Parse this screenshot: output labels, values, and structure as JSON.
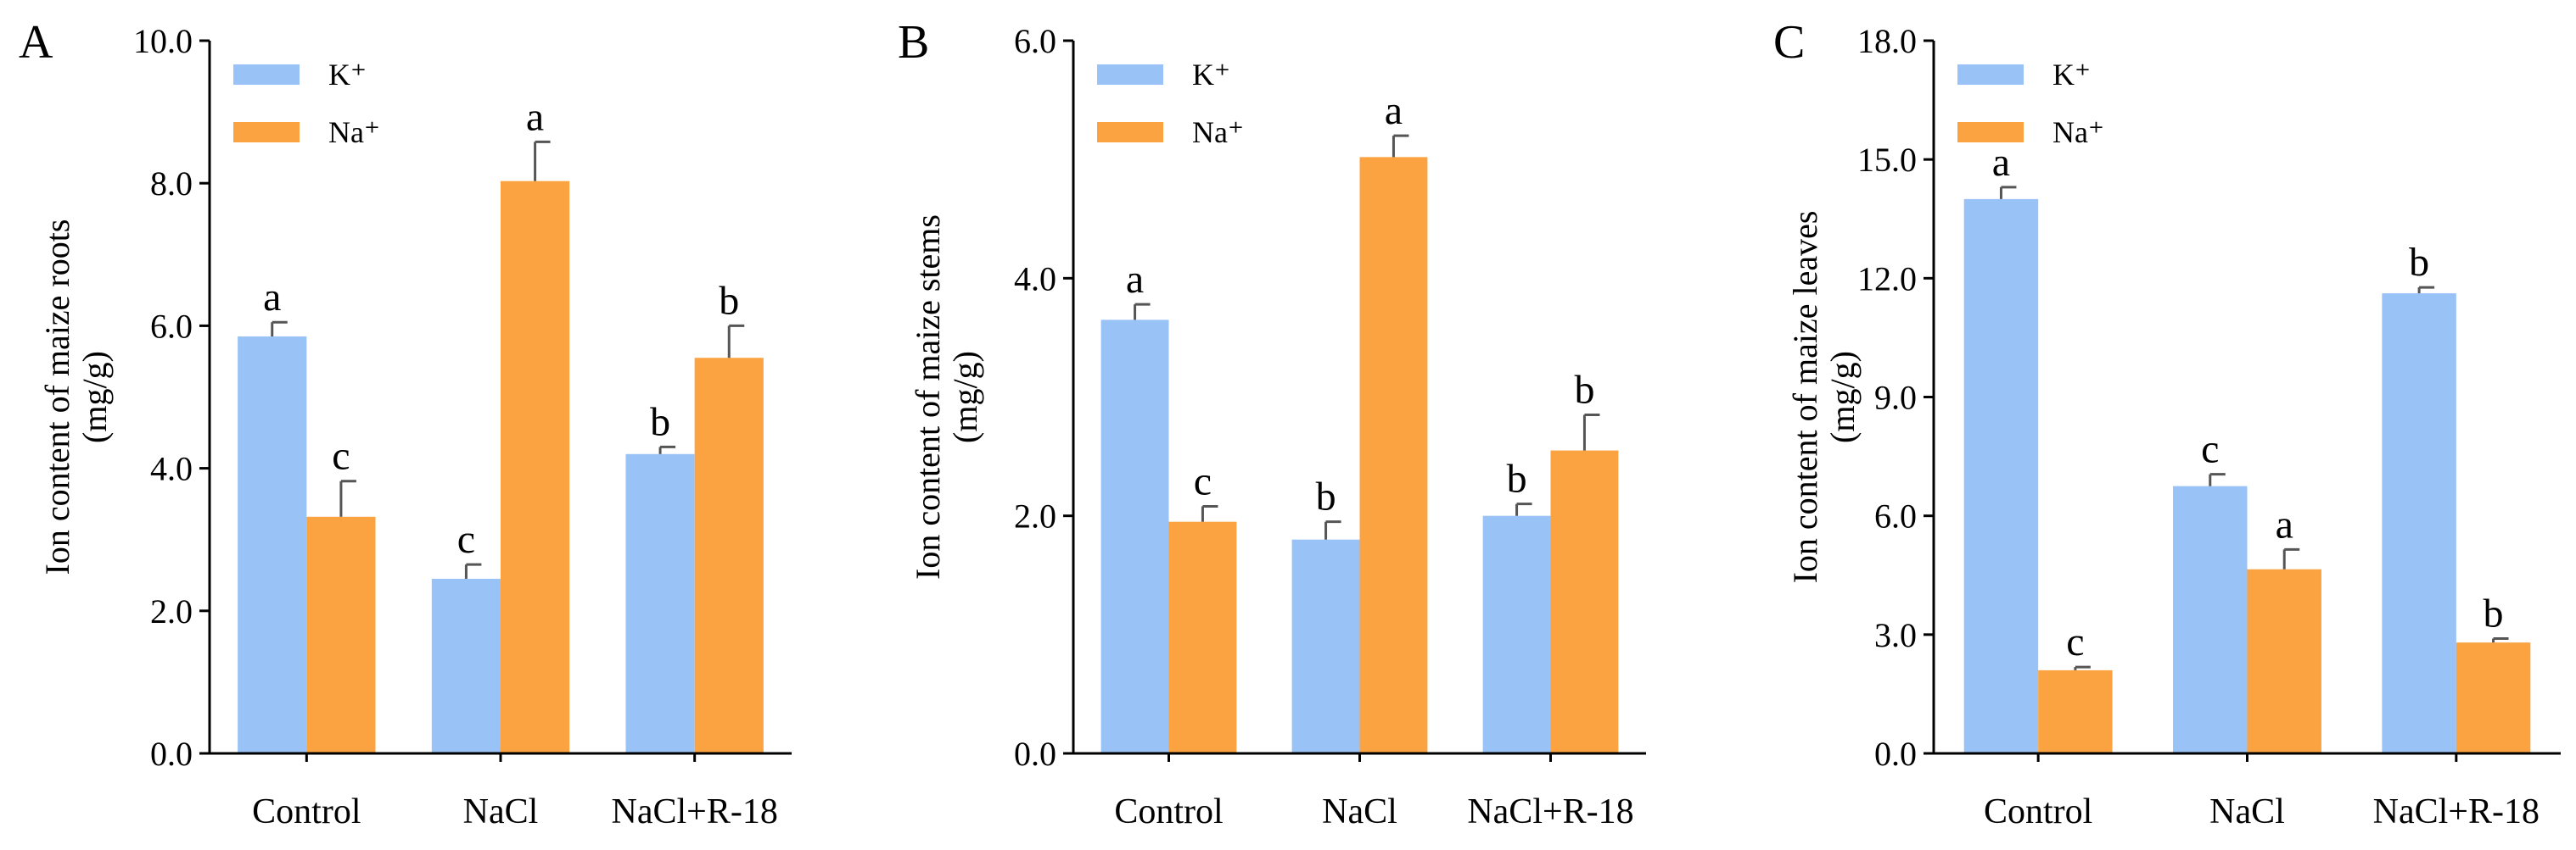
{
  "figure": {
    "colors": {
      "K": "#99c2f7",
      "Na": "#fca341",
      "axis": "#000000",
      "error": "#555555"
    }
  },
  "chart_data": [
    {
      "type": "bar",
      "panel": "A",
      "categories": [
        "Control",
        "NaCl",
        "NaCl+R-18"
      ],
      "ylabel_line1": "Ion content of maize roots",
      "ylabel_line2": "(mg/g)",
      "ylim": [
        0,
        10
      ],
      "yticks": [
        "0.0",
        "2.0",
        "4.0",
        "6.0",
        "8.0",
        "10.0"
      ],
      "legend": {
        "K": "K⁺",
        "Na": "Na⁺",
        "position": "top-left"
      },
      "series": [
        {
          "name": "K⁺",
          "key": "K",
          "values": [
            5.85,
            2.45,
            4.2
          ],
          "errors": [
            0.2,
            0.2,
            0.1
          ],
          "letters": [
            "a",
            "c",
            "b"
          ]
        },
        {
          "name": "Na⁺",
          "key": "Na",
          "values": [
            3.32,
            8.03,
            5.55
          ],
          "errors": [
            0.5,
            0.55,
            0.45
          ],
          "letters": [
            "c",
            "a",
            "b"
          ]
        }
      ]
    },
    {
      "type": "bar",
      "panel": "B",
      "categories": [
        "Control",
        "NaCl",
        "NaCl+R-18"
      ],
      "ylabel_line1": "Ion content of maize stems",
      "ylabel_line2": "(mg/g)",
      "ylim": [
        0,
        6
      ],
      "yticks": [
        "0.0",
        "2.0",
        "4.0",
        "6.0"
      ],
      "legend": {
        "K": "K⁺",
        "Na": "Na⁺",
        "position": "top-left"
      },
      "series": [
        {
          "name": "K⁺",
          "key": "K",
          "values": [
            3.65,
            1.8,
            2.0
          ],
          "errors": [
            0.13,
            0.15,
            0.1
          ],
          "letters": [
            "a",
            "b",
            "b"
          ]
        },
        {
          "name": "Na⁺",
          "key": "Na",
          "values": [
            1.95,
            5.02,
            2.55
          ],
          "errors": [
            0.13,
            0.18,
            0.3
          ],
          "letters": [
            "c",
            "a",
            "b"
          ]
        }
      ]
    },
    {
      "type": "bar",
      "panel": "C",
      "categories": [
        "Control",
        "NaCl",
        "NaCl+R-18"
      ],
      "ylabel_line1": "Ion content of maize leaves",
      "ylabel_line2": "(mg/g)",
      "ylim": [
        0,
        18
      ],
      "yticks": [
        "0.0",
        "3.0",
        "6.0",
        "9.0",
        "12.0",
        "15.0",
        "18.0"
      ],
      "legend": {
        "K": "K⁺",
        "Na": "Na⁺",
        "position": "top-left"
      },
      "series": [
        {
          "name": "K⁺",
          "key": "K",
          "values": [
            14.0,
            6.75,
            11.62
          ],
          "errors": [
            0.3,
            0.3,
            0.15
          ],
          "letters": [
            "a",
            "c",
            "b"
          ]
        },
        {
          "name": "Na⁺",
          "key": "Na",
          "values": [
            2.1,
            4.65,
            2.8
          ],
          "errors": [
            0.08,
            0.5,
            0.1
          ],
          "letters": [
            "c",
            "a",
            "b"
          ]
        }
      ]
    }
  ]
}
